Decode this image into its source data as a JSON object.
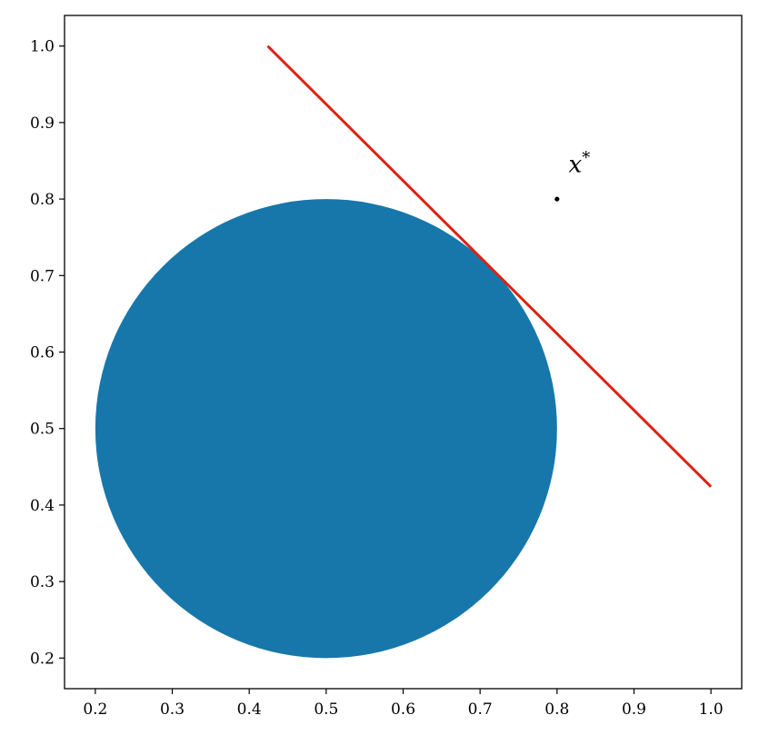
{
  "chart_data": {
    "type": "scatter",
    "title": "",
    "xlabel": "",
    "ylabel": "",
    "xlim": [
      0.16,
      1.04
    ],
    "ylim": [
      0.16,
      1.04
    ],
    "grid": false,
    "x_ticks": [
      "0.2",
      "0.3",
      "0.4",
      "0.5",
      "0.6",
      "0.7",
      "0.8",
      "0.9",
      "1.0"
    ],
    "y_ticks": [
      "0.2",
      "0.3",
      "0.4",
      "0.5",
      "0.6",
      "0.7",
      "0.8",
      "0.9",
      "1.0"
    ],
    "circle": {
      "center": [
        0.5,
        0.5
      ],
      "radius": 0.3,
      "color": "#1777aa"
    },
    "line": {
      "points": [
        [
          0.424,
          1.0
        ],
        [
          1.0,
          0.424
        ]
      ],
      "color": "#dd2211"
    },
    "point": {
      "x": 0.8,
      "y": 0.8,
      "color": "#000000"
    },
    "annotation": {
      "text": "x",
      "superscript": "*",
      "x": 0.815,
      "y": 0.835
    }
  }
}
